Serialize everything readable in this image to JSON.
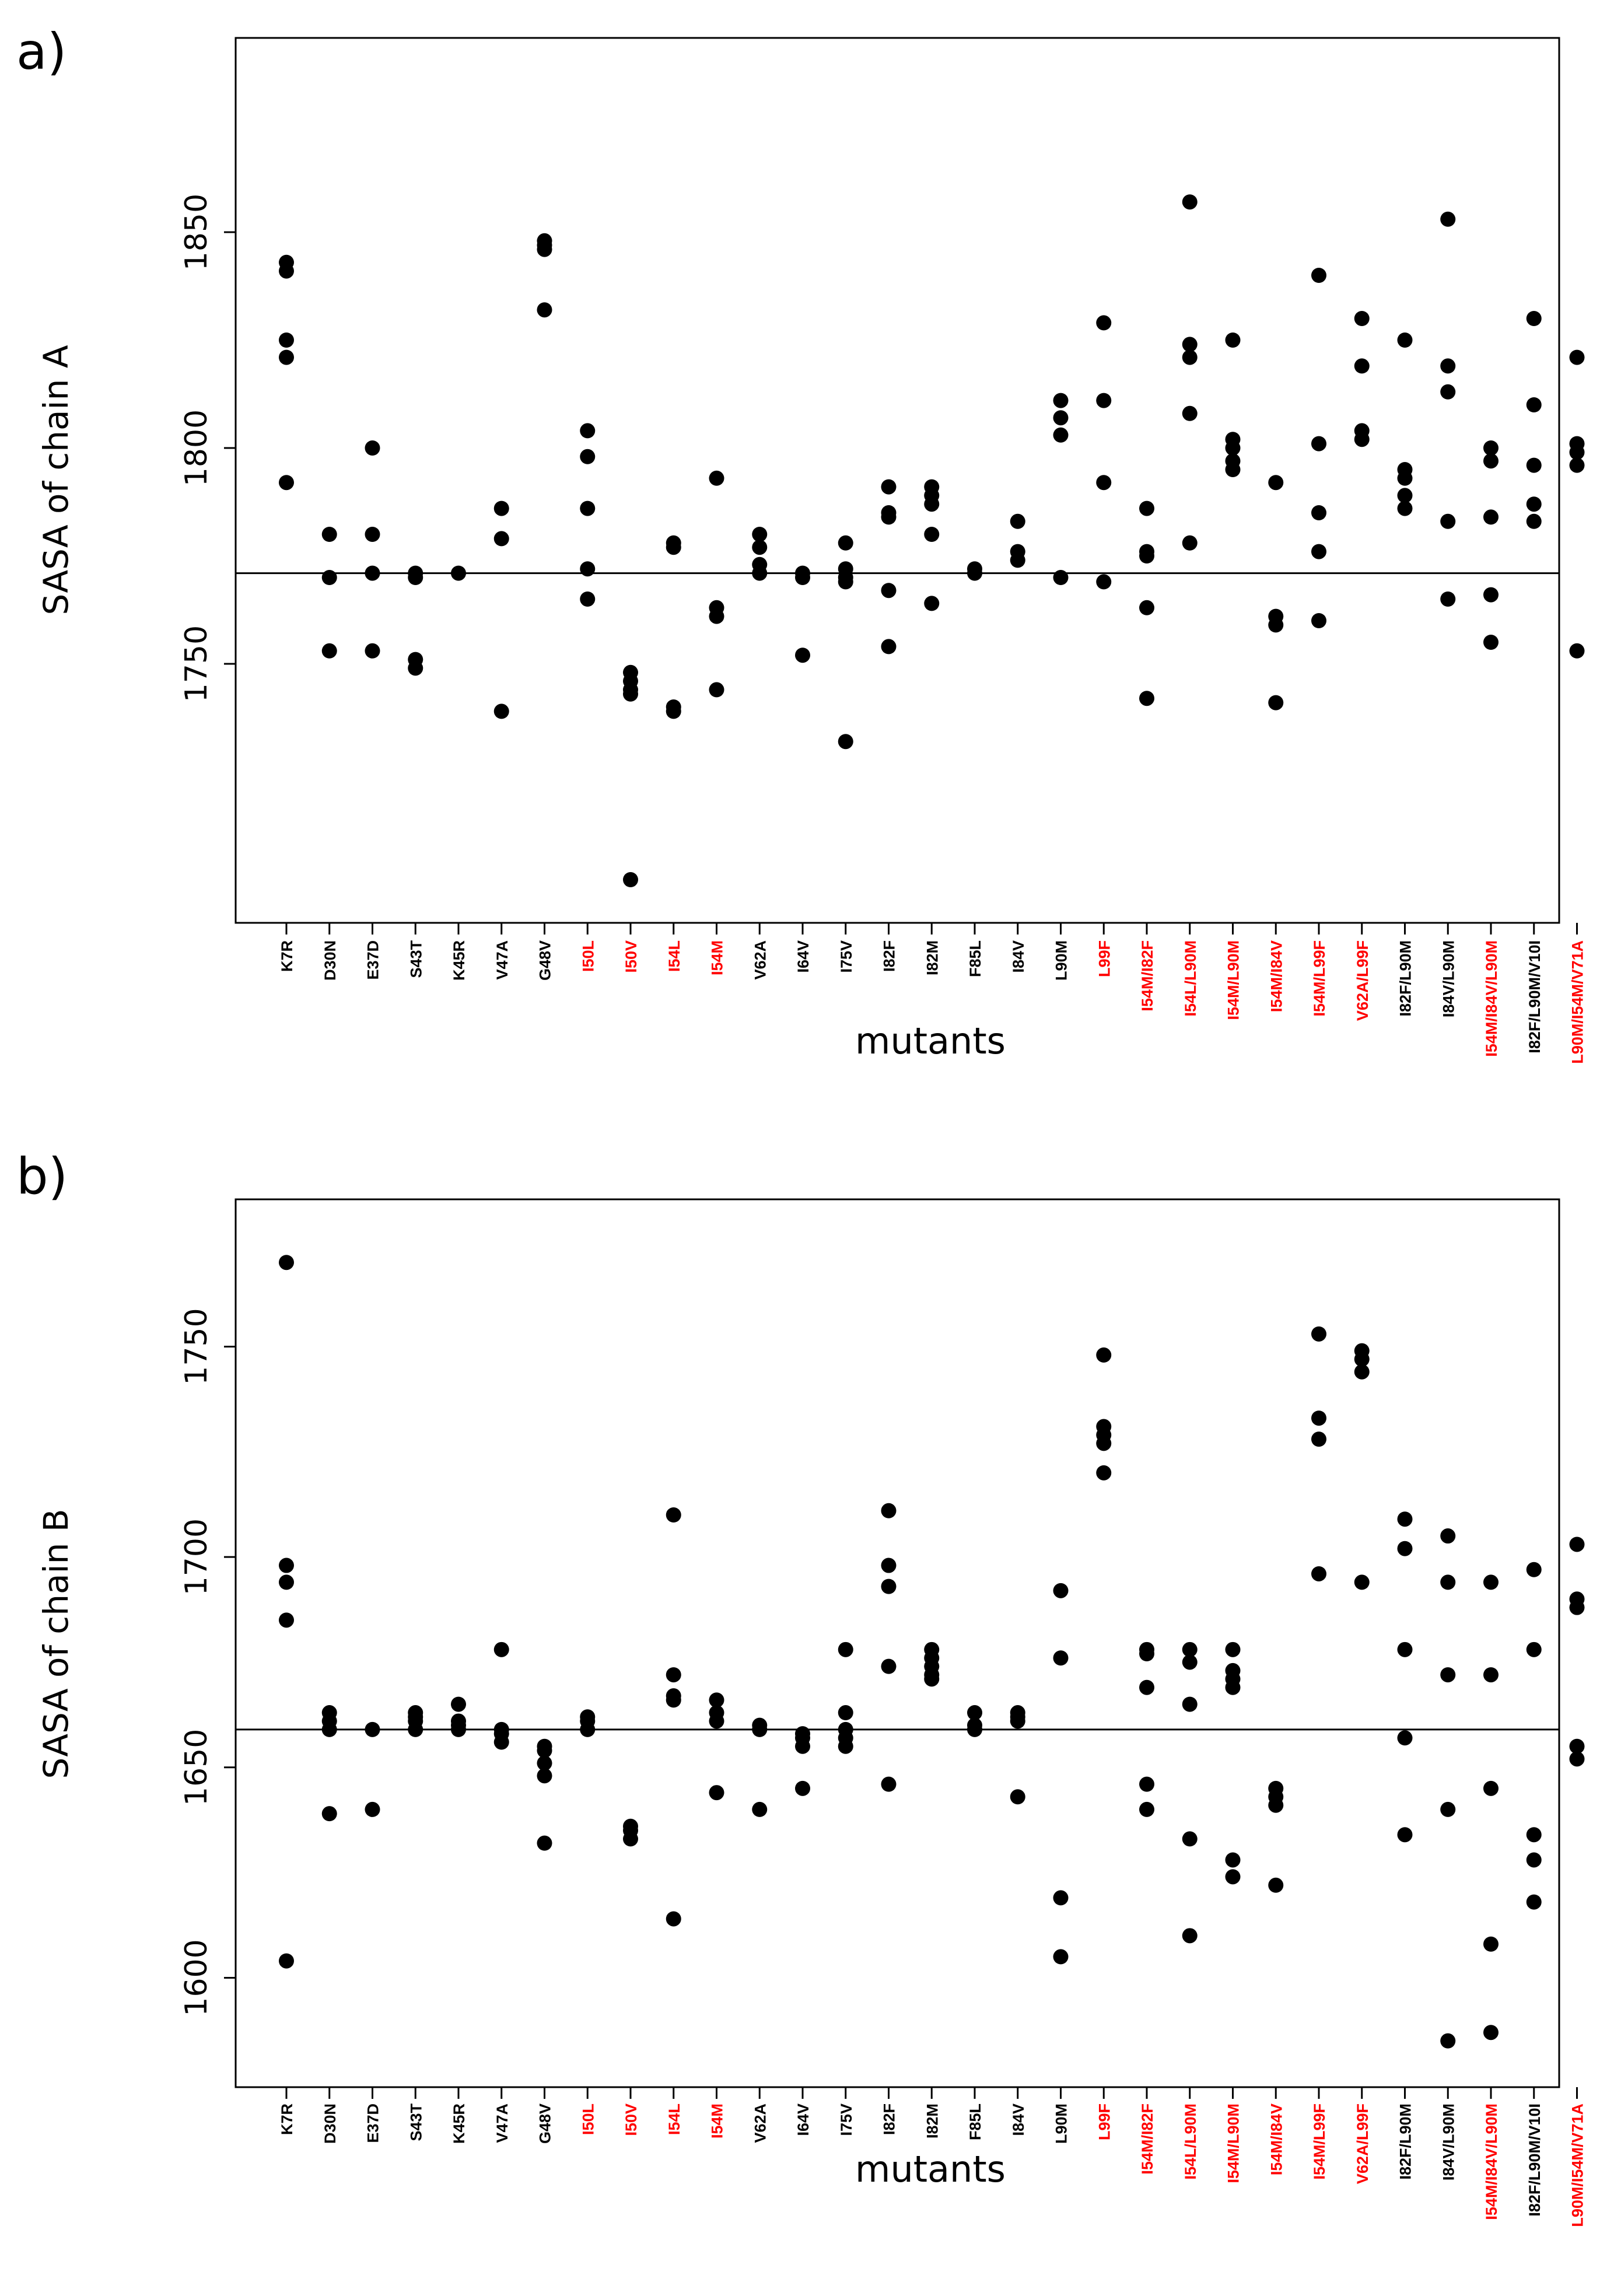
{
  "colors": {
    "wild_type_label": "#000000",
    "resistance_label": "#ff0000",
    "point": "#000000",
    "axis": "#000000"
  },
  "chart_data": [
    {
      "type": "scatter",
      "panel_label": "a)",
      "xlabel": "mutants",
      "ylabel": "SASA of chain A",
      "ylim": [
        1690,
        1895
      ],
      "yticks": [
        1750,
        1800,
        1850
      ],
      "reference_line": 1771,
      "categories": [
        "K7R",
        "D30N",
        "E37D",
        "S43T",
        "K45R",
        "V47A",
        "G48V",
        "I50L",
        "I50V",
        "I54L",
        "I54M",
        "V62A",
        "I64V",
        "I75V",
        "I82F",
        "I82M",
        "F85L",
        "I84V",
        "L90M",
        "L99F",
        "I54M/I82F",
        "I54L/L90M",
        "I54M/L90M",
        "I54M/I84V",
        "I54M/L99F",
        "V62A/L99F",
        "I82F/L90M",
        "I84V/L90M",
        "I54M/I84V/L90M",
        "I82F/L90M/V10I",
        "L90M/I54M/V71A"
      ],
      "category_colors": [
        "black",
        "black",
        "black",
        "black",
        "black",
        "black",
        "black",
        "red",
        "red",
        "red",
        "red",
        "black",
        "black",
        "black",
        "black",
        "black",
        "black",
        "black",
        "black",
        "red",
        "red",
        "red",
        "red",
        "red",
        "red",
        "red",
        "black",
        "black",
        "red",
        "black",
        "red"
      ],
      "points": [
        [
          1843,
          1841,
          1825,
          1821,
          1792
        ],
        [
          1780,
          1770,
          1753
        ],
        [
          1800,
          1780,
          1771,
          1753
        ],
        [
          1771,
          1770,
          1751,
          1749
        ],
        [
          1771
        ],
        [
          1786,
          1779,
          1739
        ],
        [
          1848,
          1847,
          1846,
          1832
        ],
        [
          1804,
          1798,
          1786,
          1772,
          1765
        ],
        [
          1748,
          1746,
          1744,
          1743,
          1700
        ],
        [
          1778,
          1777,
          1740,
          1739
        ],
        [
          1793,
          1763,
          1761,
          1744
        ],
        [
          1780,
          1777,
          1773,
          1771
        ],
        [
          1771,
          1770,
          1752
        ],
        [
          1778,
          1772,
          1770,
          1769,
          1732
        ],
        [
          1791,
          1785,
          1784,
          1767,
          1754
        ],
        [
          1791,
          1789,
          1787,
          1780,
          1764
        ],
        [
          1772,
          1771
        ],
        [
          1783,
          1776,
          1774
        ],
        [
          1811,
          1807,
          1803,
          1770
        ],
        [
          1829,
          1811,
          1792,
          1769
        ],
        [
          1786,
          1776,
          1775,
          1763,
          1742
        ],
        [
          1857,
          1824,
          1821,
          1808,
          1778
        ],
        [
          1825,
          1802,
          1800,
          1797,
          1795
        ],
        [
          1792,
          1761,
          1759,
          1741
        ],
        [
          1840,
          1801,
          1785,
          1776,
          1760
        ],
        [
          1830,
          1819,
          1804,
          1802
        ],
        [
          1825,
          1795,
          1793,
          1789,
          1786
        ],
        [
          1853,
          1819,
          1813,
          1783,
          1765
        ],
        [
          1800,
          1797,
          1784,
          1766,
          1755
        ],
        [
          1830,
          1810,
          1796,
          1787,
          1783
        ],
        [
          1821,
          1801,
          1799,
          1796,
          1753
        ]
      ]
    },
    {
      "type": "scatter",
      "panel_label": "b)",
      "xlabel": "mutants",
      "ylabel": "SASA of chain B",
      "ylim": [
        1574,
        1785
      ],
      "yticks": [
        1600,
        1650,
        1700,
        1750
      ],
      "reference_line": 1659,
      "categories": [
        "K7R",
        "D30N",
        "E37D",
        "S43T",
        "K45R",
        "V47A",
        "G48V",
        "I50L",
        "I50V",
        "I54L",
        "I54M",
        "V62A",
        "I64V",
        "I75V",
        "I82F",
        "I82M",
        "F85L",
        "I84V",
        "L90M",
        "L99F",
        "I54M/I82F",
        "I54L/L90M",
        "I54M/L90M",
        "I54M/I84V",
        "I54M/L99F",
        "V62A/L99F",
        "I82F/L90M",
        "I84V/L90M",
        "I54M/I84V/L90M",
        "I82F/L90M/V10I",
        "L90M/I54M/V71A"
      ],
      "category_colors": [
        "black",
        "black",
        "black",
        "black",
        "black",
        "black",
        "black",
        "red",
        "red",
        "red",
        "red",
        "black",
        "black",
        "black",
        "black",
        "black",
        "black",
        "black",
        "black",
        "red",
        "red",
        "red",
        "red",
        "red",
        "red",
        "red",
        "black",
        "black",
        "red",
        "black",
        "red"
      ],
      "points": [
        [
          1770,
          1698,
          1694,
          1685,
          1604
        ],
        [
          1663,
          1661,
          1659,
          1639
        ],
        [
          1659,
          1640
        ],
        [
          1663,
          1662,
          1661,
          1659
        ],
        [
          1665,
          1661,
          1660,
          1659
        ],
        [
          1678,
          1659,
          1658,
          1656
        ],
        [
          1655,
          1654,
          1651,
          1648,
          1632
        ],
        [
          1662,
          1661,
          1659
        ],
        [
          1636,
          1635,
          1633
        ],
        [
          1710,
          1672,
          1667,
          1666,
          1614
        ],
        [
          1666,
          1663,
          1661,
          1644
        ],
        [
          1660,
          1659,
          1640
        ],
        [
          1658,
          1657,
          1655,
          1645
        ],
        [
          1678,
          1663,
          1659,
          1657,
          1655
        ],
        [
          1711,
          1698,
          1693,
          1674,
          1646
        ],
        [
          1678,
          1676,
          1674,
          1672,
          1671
        ],
        [
          1663,
          1660,
          1659
        ],
        [
          1663,
          1662,
          1661,
          1643
        ],
        [
          1692,
          1676,
          1619,
          1605
        ],
        [
          1748,
          1731,
          1729,
          1727,
          1720
        ],
        [
          1678,
          1677,
          1669,
          1646,
          1640
        ],
        [
          1678,
          1675,
          1665,
          1633,
          1610
        ],
        [
          1678,
          1673,
          1671,
          1669,
          1628,
          1624
        ],
        [
          1645,
          1643,
          1641,
          1622
        ],
        [
          1753,
          1733,
          1728,
          1696
        ],
        [
          1749,
          1747,
          1744,
          1694
        ],
        [
          1709,
          1702,
          1678,
          1657,
          1634
        ],
        [
          1705,
          1694,
          1672,
          1640,
          1585
        ],
        [
          1694,
          1672,
          1645,
          1608,
          1587
        ],
        [
          1697,
          1678,
          1634,
          1628,
          1618
        ],
        [
          1703,
          1690,
          1688,
          1655,
          1652
        ]
      ]
    }
  ]
}
